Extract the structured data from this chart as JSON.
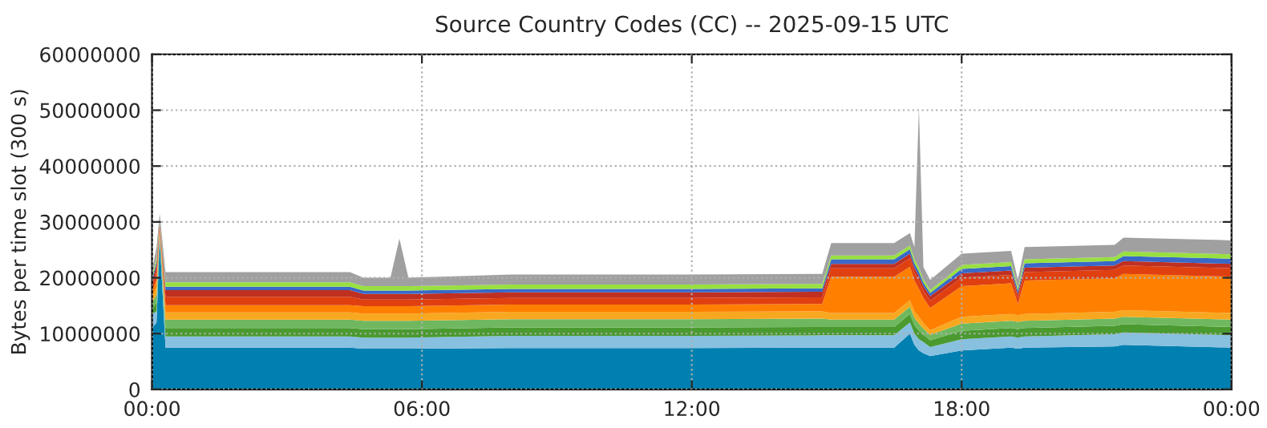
{
  "chart_data": {
    "type": "area",
    "stacked": true,
    "title": "Source Country Codes (CC) -- 2025-09-15 UTC",
    "ylabel": "Bytes per time slot (300 s)",
    "x": [
      0,
      0.1,
      0.17,
      0.3,
      2,
      4.4,
      4.7,
      5.3,
      5.5,
      5.7,
      8,
      10,
      12,
      14.9,
      15.1,
      16.5,
      16.85,
      16.95,
      17.05,
      17.15,
      17.3,
      18,
      19.1,
      19.25,
      19.4,
      21.4,
      21.6,
      24
    ],
    "xlim": [
      0,
      24
    ],
    "xticks": [
      {
        "value": 0,
        "label": "00:00"
      },
      {
        "value": 6,
        "label": "06:00"
      },
      {
        "value": 12,
        "label": "12:00"
      },
      {
        "value": 18,
        "label": "18:00"
      },
      {
        "value": 24,
        "label": "00:00"
      }
    ],
    "ylim": [
      0,
      60000000
    ],
    "yticks": [
      0,
      10000000,
      20000000,
      30000000,
      40000000,
      50000000,
      60000000
    ],
    "grid": true,
    "line_style": "dotted",
    "series": [
      {
        "color": "#0080b0",
        "values": [
          11000000.0,
          12000000.0,
          27000000.0,
          7500000.0,
          7500000.0,
          7500000.0,
          7300000.0,
          7300000.0,
          7300000.0,
          7300000.0,
          7400000.0,
          7400000.0,
          7400000.0,
          7500000.0,
          7500000.0,
          7500000.0,
          10000000.0,
          8000000.0,
          7000000.0,
          6500000.0,
          6000000.0,
          7000000.0,
          7500000.0,
          7300000.0,
          7500000.0,
          7700000.0,
          8000000.0,
          7500000.0
        ]
      },
      {
        "color": "#88c0e0",
        "values": [
          2500000.0,
          2000000.0,
          500000.0,
          2000000.0,
          2000000.0,
          2000000.0,
          2000000.0,
          2000000.0,
          2000000.0,
          2000000.0,
          2200000.0,
          2200000.0,
          2200000.0,
          2200000.0,
          2200000.0,
          2200000.0,
          2000000.0,
          2000000.0,
          2000000.0,
          2000000.0,
          1600000.0,
          2000000.0,
          2000000.0,
          2000000.0,
          2000000.0,
          2200000.0,
          2200000.0,
          2200000.0
        ]
      },
      {
        "color": "#4a9a30",
        "values": [
          1000000.0,
          1500000.0,
          300000.0,
          1500000.0,
          1500000.0,
          1500000.0,
          1500000.0,
          1500000.0,
          1500000.0,
          1500000.0,
          1500000.0,
          1500000.0,
          1500000.0,
          1500000.0,
          1500000.0,
          1500000.0,
          1500000.0,
          1500000.0,
          1500000.0,
          1300000.0,
          1200000.0,
          1500000.0,
          1500000.0,
          1500000.0,
          1500000.0,
          1500000.0,
          1500000.0,
          1500000.0
        ]
      },
      {
        "color": "#70b860",
        "values": [
          1000000.0,
          1500000.0,
          300000.0,
          1500000.0,
          1500000.0,
          1500000.0,
          1500000.0,
          1500000.0,
          1500000.0,
          1500000.0,
          1500000.0,
          1500000.0,
          1500000.0,
          1500000.0,
          1300000.0,
          1300000.0,
          1300000.0,
          1300000.0,
          1300000.0,
          1100000.0,
          1000000.0,
          1300000.0,
          1300000.0,
          1300000.0,
          1300000.0,
          1300000.0,
          1300000.0,
          1300000.0
        ]
      },
      {
        "color": "#f8a820",
        "values": [
          1000000.0,
          1300000.0,
          300000.0,
          1300000.0,
          1300000.0,
          1300000.0,
          1300000.0,
          1300000.0,
          1300000.0,
          1300000.0,
          1300000.0,
          1300000.0,
          1300000.0,
          1300000.0,
          1200000.0,
          1200000.0,
          1200000.0,
          1200000.0,
          1200000.0,
          1000000.0,
          800000.0,
          1200000.0,
          1200000.0,
          1200000.0,
          1200000.0,
          1200000.0,
          1200000.0,
          1200000.0
        ]
      },
      {
        "color": "#ff8000",
        "values": [
          1000000.0,
          1300000.0,
          500000.0,
          1300000.0,
          1300000.0,
          1300000.0,
          1300000.0,
          1300000.0,
          1300000.0,
          1300000.0,
          1300000.0,
          1300000.0,
          1300000.0,
          1300000.0,
          6500000.0,
          6500000.0,
          6000000.0,
          5500000.0,
          5000000.0,
          4500000.0,
          4000000.0,
          5500000.0,
          5500000.0,
          2000000.0,
          6000000.0,
          6000000.0,
          6500000.0,
          6500000.0
        ]
      },
      {
        "color": "#e04010",
        "values": [
          1000000.0,
          1500000.0,
          500000.0,
          1500000.0,
          1500000.0,
          1500000.0,
          1200000.0,
          1200000.0,
          1200000.0,
          1200000.0,
          1200000.0,
          1200000.0,
          1200000.0,
          1200000.0,
          1500000.0,
          1500000.0,
          1500000.0,
          1500000.0,
          1500000.0,
          1300000.0,
          1300000.0,
          1500000.0,
          1500000.0,
          1200000.0,
          1500000.0,
          1500000.0,
          1500000.0,
          1500000.0
        ]
      },
      {
        "color": "#c03020",
        "values": [
          800000.0,
          1200000.0,
          500000.0,
          1200000.0,
          1200000.0,
          1200000.0,
          1000000.0,
          1000000.0,
          1000000.0,
          1000000.0,
          1000000.0,
          1000000.0,
          1000000.0,
          1000000.0,
          800000.0,
          800000.0,
          800000.0,
          800000.0,
          800000.0,
          800000.0,
          800000.0,
          800000.0,
          800000.0,
          600000.0,
          800000.0,
          800000.0,
          800000.0,
          800000.0
        ]
      },
      {
        "color": "#3868c8",
        "values": [
          500000.0,
          600000.0,
          300000.0,
          600000.0,
          600000.0,
          600000.0,
          600000.0,
          600000.0,
          600000.0,
          600000.0,
          600000.0,
          600000.0,
          600000.0,
          600000.0,
          800000.0,
          800000.0,
          800000.0,
          800000.0,
          800000.0,
          600000.0,
          600000.0,
          800000.0,
          800000.0,
          600000.0,
          800000.0,
          800000.0,
          900000.0,
          900000.0
        ]
      },
      {
        "color": "#98e040",
        "values": [
          500000.0,
          800000.0,
          300000.0,
          800000.0,
          800000.0,
          800000.0,
          800000.0,
          800000.0,
          800000.0,
          800000.0,
          800000.0,
          800000.0,
          800000.0,
          800000.0,
          700000.0,
          700000.0,
          700000.0,
          700000.0,
          700000.0,
          600000.0,
          500000.0,
          700000.0,
          700000.0,
          500000.0,
          700000.0,
          700000.0,
          800000.0,
          800000.0
        ]
      },
      {
        "color": "#a0a0a0",
        "values": [
          1000000.0,
          1800000.0,
          1000000.0,
          1800000.0,
          1800000.0,
          1800000.0,
          1500000.0,
          1500000.0,
          8500000.0,
          1500000.0,
          1800000.0,
          1800000.0,
          1800000.0,
          1800000.0,
          2200000.0,
          2200000.0,
          2200000.0,
          2200000.0,
          28700000.0,
          2200000.0,
          1800000.0,
          2000000.0,
          2000000.0,
          1500000.0,
          2200000.0,
          2200000.0,
          2500000.0,
          2500000.0
        ]
      }
    ]
  }
}
